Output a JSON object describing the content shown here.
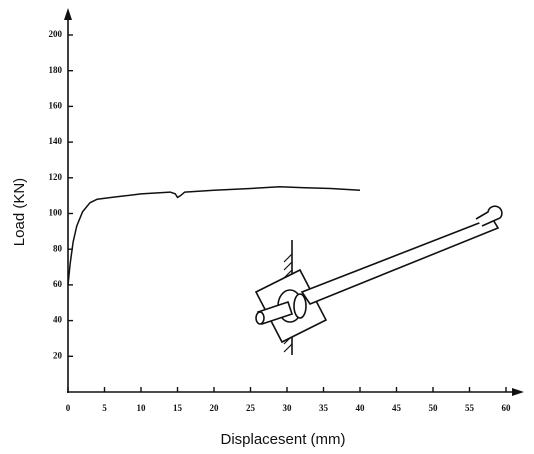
{
  "chart_data": {
    "type": "line",
    "x_label": "Displacesent (mm)",
    "y_label": "Load (KN)",
    "x": [
      0,
      0.3,
      0.7,
      1.2,
      2,
      3,
      4,
      6,
      8,
      10,
      12,
      14,
      14.7,
      15,
      15.4,
      16,
      20,
      25,
      29,
      32,
      36,
      40
    ],
    "values": [
      60,
      72,
      84,
      93,
      101,
      106,
      108,
      109,
      110,
      111,
      111.5,
      112,
      111,
      109,
      110,
      112,
      113,
      114,
      115,
      114.5,
      114,
      113
    ],
    "color": "#111111",
    "xlim": [
      0,
      60
    ],
    "ylim": [
      0,
      200
    ],
    "xticks": [
      0,
      5,
      10,
      15,
      20,
      25,
      30,
      35,
      40,
      45,
      50,
      55,
      60
    ],
    "yticks": [
      20,
      40,
      60,
      80,
      100,
      120,
      140,
      160,
      180,
      200
    ]
  }
}
